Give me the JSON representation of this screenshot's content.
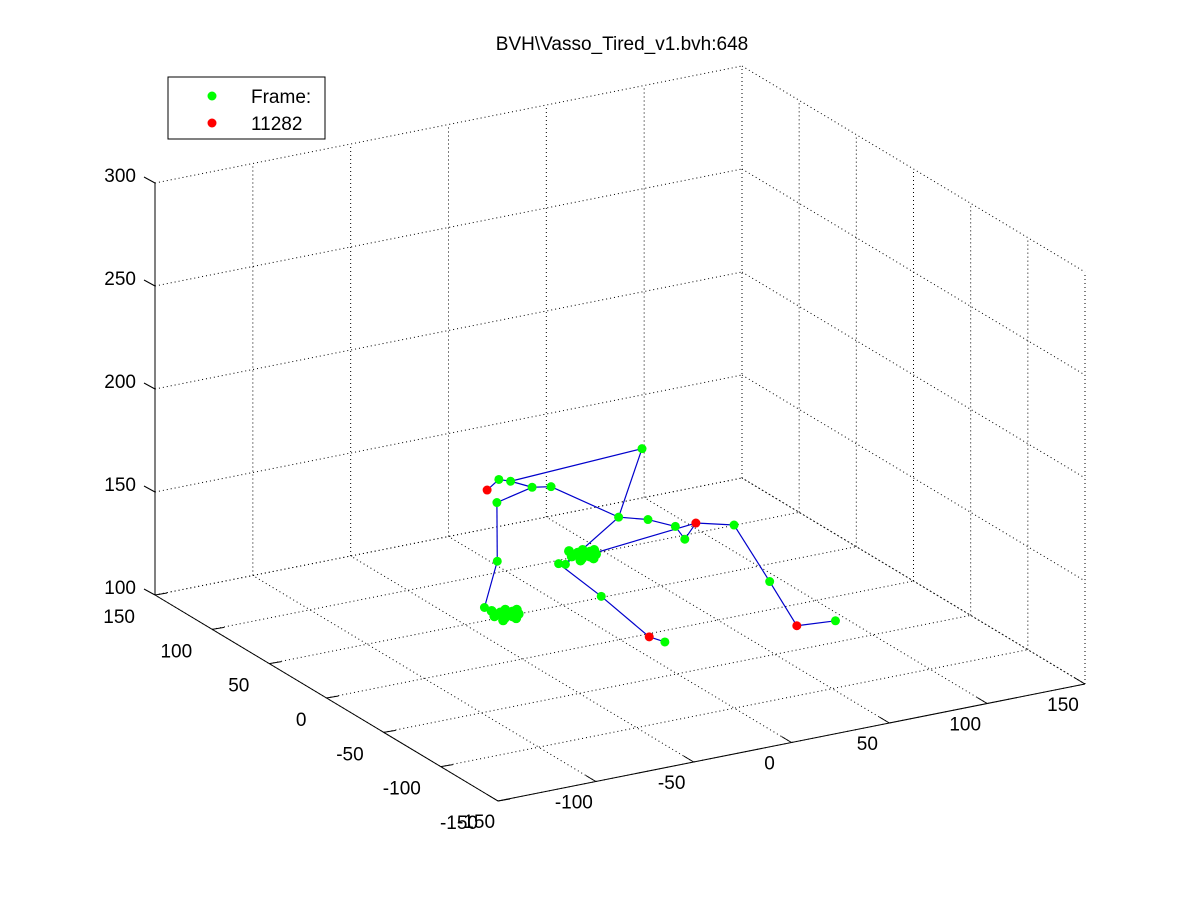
{
  "chart_data": {
    "type": "scatter",
    "title": "BVH\\Vasso_Tired_v1.bvh:648",
    "view": "3d",
    "grid": true,
    "legend": {
      "placement": "top-left",
      "entries": [
        {
          "label": "Frame:",
          "color": "#00ff00"
        },
        {
          "label": "11282",
          "color": "#ff0000"
        }
      ]
    },
    "axes": {
      "x": {
        "range": [
          -150,
          150
        ],
        "ticks": [
          -150,
          -100,
          -50,
          0,
          50,
          100,
          150
        ],
        "tick_labels": [
          "-150",
          "-100",
          "-50",
          "0",
          "50",
          "100",
          "150"
        ]
      },
      "y": {
        "range": [
          -150,
          150
        ],
        "ticks": [
          -150,
          -100,
          -50,
          0,
          50,
          100,
          150
        ],
        "tick_labels": [
          "-150",
          "-100",
          "-50",
          "0",
          "50",
          "100",
          "150"
        ]
      },
      "z": {
        "range": [
          100,
          300
        ],
        "ticks": [
          100,
          150,
          200,
          250,
          300
        ],
        "tick_labels": [
          "100",
          "150",
          "200",
          "250",
          "300"
        ]
      }
    },
    "colors": {
      "joint": "#00ff00",
      "end_effector": "#ff0000",
      "bone": "#0000cc"
    },
    "joints": [
      {
        "x": 92,
        "y": -31,
        "z": 102,
        "kind": "joint"
      },
      {
        "x": 74,
        "y": -28,
        "z": 102,
        "kind": "end_effector"
      },
      {
        "x": 80,
        "y": 6,
        "z": 111,
        "kind": "joint"
      },
      {
        "x": 84,
        "y": 44,
        "z": 125,
        "kind": "joint"
      },
      {
        "x": 13,
        "y": -17,
        "z": 102,
        "kind": "joint"
      },
      {
        "x": 5,
        "y": -17,
        "z": 106,
        "kind": "end_effector"
      },
      {
        "x": -2,
        "y": 13,
        "z": 117,
        "kind": "joint"
      },
      {
        "x": -8,
        "y": 40,
        "z": 125,
        "kind": "joint"
      },
      {
        "x": 60,
        "y": 46,
        "z": 122,
        "kind": "joint"
      },
      {
        "x": 68,
        "y": 50,
        "z": 127,
        "kind": "end_effector"
      },
      {
        "x": 54,
        "y": 44,
        "z": 130,
        "kind": "joint"
      },
      {
        "x": 40,
        "y": 44,
        "z": 136,
        "kind": "joint"
      },
      {
        "x": 25,
        "y": 44,
        "z": 140,
        "kind": "joint"
      },
      {
        "x": 58,
        "y": 80,
        "z": 155,
        "kind": "joint"
      },
      {
        "x": 8,
        "y": 74,
        "z": 148,
        "kind": "joint"
      },
      {
        "x": 3,
        "y": 82,
        "z": 146,
        "kind": "joint"
      },
      {
        "x": -8,
        "y": 82,
        "z": 151,
        "kind": "joint"
      },
      {
        "x": -14,
        "y": 82,
        "z": 153,
        "kind": "joint"
      },
      {
        "x": -20,
        "y": 82,
        "z": 149,
        "kind": "end_effector"
      },
      {
        "x": -15,
        "y": 82,
        "z": 142,
        "kind": "joint"
      },
      {
        "x": -30,
        "y": 56,
        "z": 125,
        "kind": "joint"
      },
      {
        "x": -50,
        "y": 33,
        "z": 114,
        "kind": "joint"
      },
      {
        "x": 6,
        "y": 58,
        "z": 116,
        "kind": "joint"
      }
    ],
    "bones": [
      [
        0,
        1
      ],
      [
        1,
        2
      ],
      [
        2,
        3
      ],
      [
        3,
        9
      ],
      [
        4,
        5
      ],
      [
        5,
        6
      ],
      [
        6,
        7
      ],
      [
        7,
        9
      ],
      [
        9,
        8
      ],
      [
        8,
        10
      ],
      [
        10,
        11
      ],
      [
        11,
        12
      ],
      [
        12,
        14
      ],
      [
        14,
        15
      ],
      [
        15,
        16
      ],
      [
        16,
        17
      ],
      [
        17,
        18
      ],
      [
        16,
        13
      ],
      [
        13,
        12
      ],
      [
        15,
        19
      ],
      [
        19,
        20
      ],
      [
        20,
        21
      ],
      [
        12,
        22
      ]
    ],
    "clusters": [
      {
        "x": 20,
        "y": 65,
        "z": 116,
        "label": ""
      },
      {
        "x": -40,
        "y": 30,
        "z": 110,
        "label": ""
      }
    ]
  }
}
